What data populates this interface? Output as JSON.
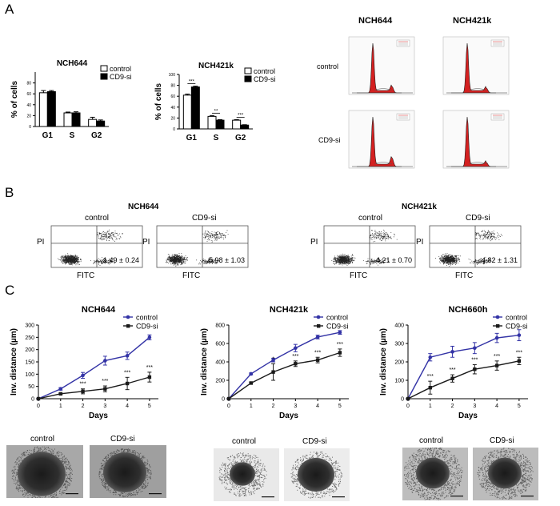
{
  "panel_labels": {
    "A": "A",
    "B": "B",
    "C": "C"
  },
  "colors": {
    "control_line": "#3333a6",
    "cd9_line": "#1a1a1a",
    "histogram_red": "#d42020",
    "flow_dots": "#202020"
  },
  "chart_data": [
    {
      "id": "cellcycle-nch644",
      "type": "bar",
      "title": "NCH644",
      "ylabel": "% of cells",
      "xlabel": "",
      "ylim": [
        0,
        100
      ],
      "yticks": [
        0,
        20,
        40,
        60,
        80
      ],
      "categories": [
        "G1",
        "S",
        "G2"
      ],
      "series": [
        {
          "name": "control",
          "values": [
            62,
            25,
            13
          ],
          "errors": [
            4,
            1.5,
            4
          ]
        },
        {
          "name": "CD9-si",
          "values": [
            64,
            25,
            10
          ],
          "errors": [
            2,
            2,
            2
          ]
        }
      ],
      "legend": [
        "control",
        "CD9-si"
      ],
      "significance": []
    },
    {
      "id": "cellcycle-nch421k",
      "type": "bar",
      "title": "NCH421k",
      "ylabel": "% of cells",
      "xlabel": "",
      "ylim": [
        0,
        100
      ],
      "yticks": [
        0,
        20,
        40,
        60,
        80,
        100
      ],
      "categories": [
        "G1",
        "S",
        "G2"
      ],
      "series": [
        {
          "name": "control",
          "values": [
            62,
            23,
            16
          ],
          "errors": [
            2,
            1.5,
            1
          ]
        },
        {
          "name": "CD9-si",
          "values": [
            77,
            16,
            7
          ],
          "errors": [
            1.5,
            1,
            0.7
          ]
        }
      ],
      "legend": [
        "control",
        "CD9-si"
      ],
      "significance": [
        "***",
        "**",
        "***"
      ]
    },
    {
      "id": "invasion-nch644",
      "type": "line",
      "title": "NCH644",
      "xlabel": "Days",
      "ylabel": "Inv. distance (µm)",
      "x": [
        0,
        1,
        2,
        3,
        4,
        5
      ],
      "xlim": [
        0,
        5.4
      ],
      "ylim": [
        0,
        300
      ],
      "yticks": [
        0,
        50,
        100,
        150,
        200,
        250,
        300
      ],
      "series": [
        {
          "name": "control",
          "values": [
            0,
            40,
            95,
            155,
            175,
            250
          ],
          "errors": [
            0,
            5,
            12,
            18,
            15,
            10
          ]
        },
        {
          "name": "CD9-si",
          "values": [
            0,
            20,
            30,
            40,
            62,
            88
          ],
          "errors": [
            0,
            3,
            10,
            12,
            25,
            20
          ]
        }
      ],
      "annotations": [
        "",
        "",
        "***",
        "***",
        "***",
        "***"
      ]
    },
    {
      "id": "invasion-nch421k",
      "type": "line",
      "title": "NCH421k",
      "xlabel": "Days",
      "ylabel": "Inv. distance (µm)",
      "x": [
        0,
        1,
        2,
        3,
        4,
        5
      ],
      "xlim": [
        0,
        5.4
      ],
      "ylim": [
        0,
        800
      ],
      "yticks": [
        0,
        200,
        400,
        600,
        800
      ],
      "series": [
        {
          "name": "control",
          "values": [
            0,
            270,
            420,
            550,
            670,
            720
          ],
          "errors": [
            0,
            10,
            20,
            40,
            20,
            20
          ]
        },
        {
          "name": "CD9-si",
          "values": [
            0,
            170,
            290,
            380,
            420,
            500
          ],
          "errors": [
            0,
            10,
            90,
            30,
            30,
            40
          ]
        }
      ],
      "annotations": [
        "",
        "",
        "*",
        "***",
        "***",
        "***"
      ]
    },
    {
      "id": "invasion-nch660h",
      "type": "line",
      "title": "NCH660h",
      "xlabel": "Days",
      "ylabel": "Inv. distance (µm)",
      "x": [
        0,
        1,
        2,
        3,
        4,
        5
      ],
      "xlim": [
        0,
        5.4
      ],
      "ylim": [
        0,
        400
      ],
      "yticks": [
        0,
        100,
        200,
        300,
        400
      ],
      "series": [
        {
          "name": "control",
          "values": [
            0,
            225,
            255,
            275,
            330,
            345
          ],
          "errors": [
            0,
            20,
            30,
            30,
            25,
            30
          ]
        },
        {
          "name": "CD9-si",
          "values": [
            0,
            60,
            110,
            160,
            180,
            205
          ],
          "errors": [
            0,
            35,
            20,
            25,
            25,
            20
          ]
        }
      ],
      "annotations": [
        "",
        "***",
        "***",
        "***",
        "***",
        "***"
      ]
    }
  ],
  "histograms": {
    "col_titles": [
      "NCH644",
      "NCH421k"
    ],
    "row_labels": [
      "control",
      "CD9-si"
    ]
  },
  "flow": {
    "groups": [
      {
        "title": "NCH644",
        "plots": [
          {
            "condition": "control",
            "percent": "1.49 ± 0.24",
            "ylabel": "PI",
            "xlabel": "FITC"
          },
          {
            "condition": "CD9-si",
            "percent": "5.98 ± 1.03",
            "ylabel": "PI",
            "xlabel": "FITC"
          }
        ]
      },
      {
        "title": "NCH421k",
        "plots": [
          {
            "condition": "control",
            "percent": "4.21 ± 0.70",
            "ylabel": "PI",
            "xlabel": "FITC"
          },
          {
            "condition": "CD9-si",
            "percent": "4.82 ± 1.31",
            "ylabel": "PI",
            "xlabel": "FITC"
          }
        ]
      }
    ]
  },
  "spheroids": {
    "labels": [
      "control",
      "CD9-si",
      "control",
      "CD9-si",
      "control",
      "CD9-si"
    ]
  }
}
